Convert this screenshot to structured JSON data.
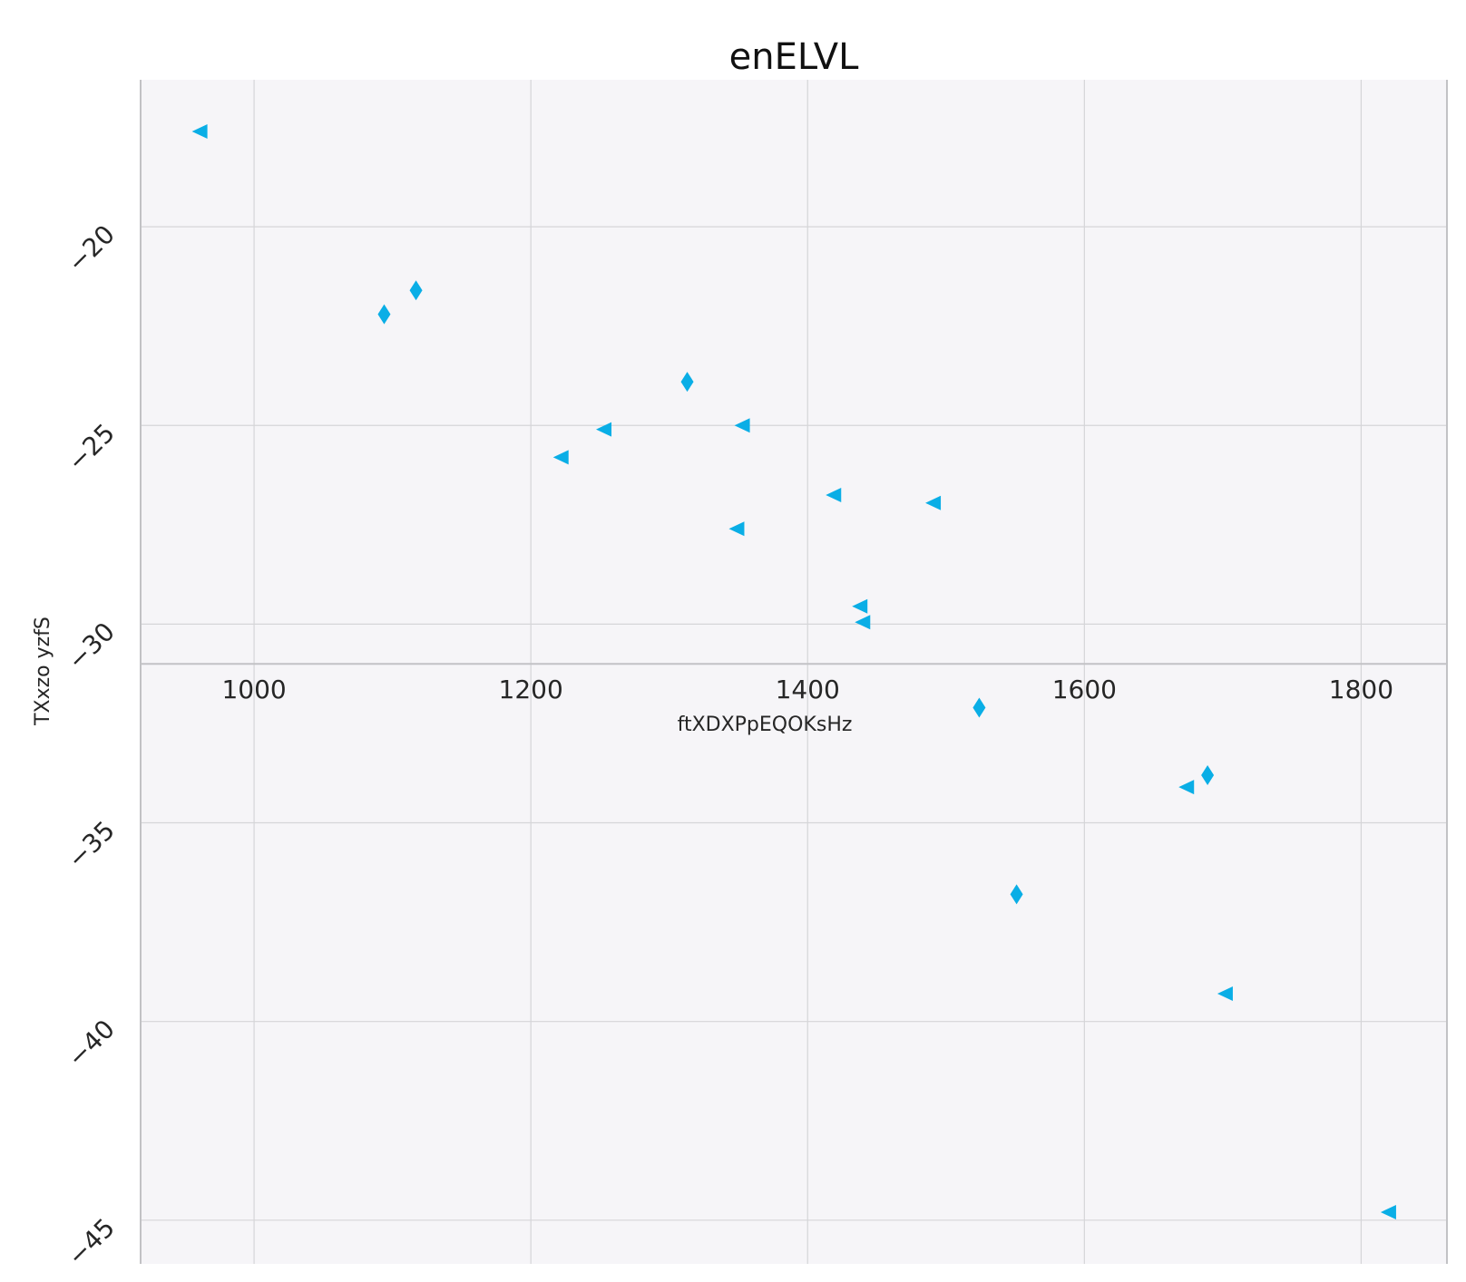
{
  "chart_data": {
    "type": "scatter",
    "title": "enELVL",
    "xlabel": "ftXDXPpEQOKsHz",
    "ylabel": "TXxzo yzfS",
    "xlim": [
      918,
      1862
    ],
    "ylim": [
      -46.1,
      -16.3
    ],
    "xticks": [
      1000,
      1200,
      1400,
      1600,
      1800
    ],
    "xtick_labels": [
      "1000",
      "1200",
      "1400",
      "1600",
      "1800"
    ],
    "yticks": [
      -45,
      -40,
      -35,
      -30,
      -25,
      -20
    ],
    "ytick_labels": [
      "−45",
      "−40",
      "−35",
      "−30",
      "−25",
      "−20"
    ],
    "x_axis_position": -31.0,
    "grid": true,
    "colors": {
      "marker": "#0aaee6",
      "background": "#f6f5f8",
      "grid": "#d5d5d8",
      "axis": "#c2c2c5"
    },
    "series": [
      {
        "marker": "triangle-left",
        "points": [
          [
            961,
            -17.6
          ],
          [
            1222,
            -25.8
          ],
          [
            1253,
            -25.1
          ],
          [
            1353,
            -25.0
          ],
          [
            1349,
            -27.6
          ],
          [
            1419,
            -26.75
          ],
          [
            1491,
            -26.95
          ],
          [
            1438,
            -29.55
          ],
          [
            1440,
            -29.95
          ],
          [
            1674,
            -34.1
          ],
          [
            1702,
            -39.3
          ],
          [
            1820,
            -44.8
          ]
        ]
      },
      {
        "marker": "thin-diamond",
        "points": [
          [
            1094,
            -22.2
          ],
          [
            1117,
            -21.6
          ],
          [
            1313,
            -23.9
          ],
          [
            1524,
            -32.1
          ],
          [
            1689,
            -33.8
          ],
          [
            1551,
            -36.8
          ]
        ]
      }
    ]
  }
}
